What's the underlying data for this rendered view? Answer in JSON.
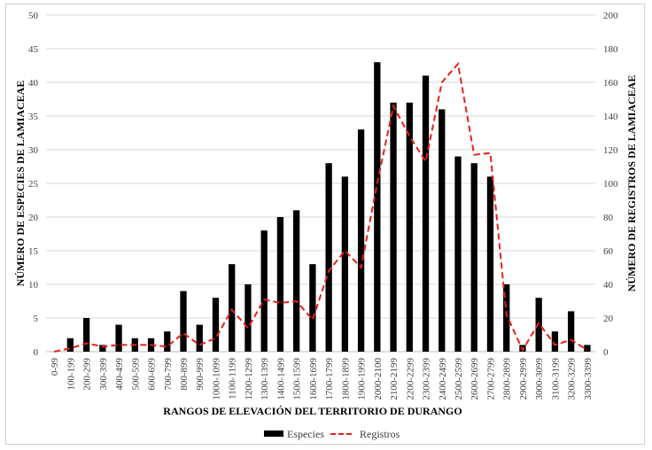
{
  "chart_data": {
    "type": "bar",
    "xlabel": "RANGOS DE ELEVACIÓN DEL TERRITORIO DE DURANGO",
    "ylabel_left": "NÚMERO DE ESPECIES DE LAMIACEAE",
    "ylabel_right": "NÚMERO DE REGISTROS DE LAMIACEAE",
    "ylim_left": [
      0,
      50
    ],
    "ylim_right": [
      0,
      200
    ],
    "yticks_left": [
      "0",
      "5",
      "10",
      "15",
      "20",
      "25",
      "30",
      "35",
      "40",
      "45",
      "50"
    ],
    "yticks_right": [
      "0",
      "20",
      "40",
      "60",
      "80",
      "100",
      "120",
      "140",
      "160",
      "180",
      "200"
    ],
    "grid": true,
    "legend_position": "bottom",
    "categories": [
      "0-99",
      "100-199",
      "200-299",
      "300-399",
      "400-499",
      "500-599",
      "600-699",
      "700-799",
      "800-899",
      "900-999",
      "1000-1099",
      "1100-1199",
      "1200-1299",
      "1300-1399",
      "1400-1499",
      "1500-1599",
      "1600-1699",
      "1700-1799",
      "1800-1899",
      "1900-1999",
      "2000-2100",
      "2100-2199",
      "2200-2299",
      "2300-2399",
      "2400-2499",
      "2500-2599",
      "2600-2699",
      "2700-2799",
      "2800-2899",
      "2900-2999",
      "3000-3099",
      "3100-3199",
      "3200-3299",
      "3300-3399"
    ],
    "series": [
      {
        "name": "Especies",
        "type": "bar",
        "axis": "left",
        "color": "#000000",
        "values": [
          0,
          2,
          5,
          1,
          4,
          2,
          2,
          3,
          9,
          4,
          8,
          13,
          10,
          18,
          20,
          21,
          13,
          28,
          26,
          33,
          43,
          37,
          37,
          41,
          36,
          29,
          28,
          26,
          10,
          1,
          8,
          3,
          6,
          1
        ]
      },
      {
        "name": "Registros",
        "type": "line",
        "style": "dashed",
        "axis": "right",
        "color": "#e8201c",
        "values": [
          0,
          2,
          5,
          3,
          4,
          4,
          4,
          3,
          11,
          4,
          8,
          25,
          14,
          31,
          29,
          30,
          19,
          48,
          60,
          50,
          100,
          146,
          128,
          113,
          160,
          171,
          117,
          118,
          22,
          1,
          17,
          4,
          7,
          1
        ]
      }
    ]
  }
}
